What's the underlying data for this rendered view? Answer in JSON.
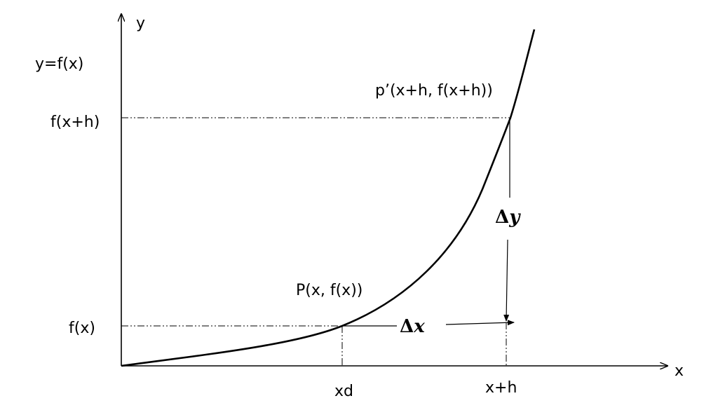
{
  "labels": {
    "y_axis": "y",
    "x_axis": "x",
    "function": "y=f(x)",
    "f_x_plus_h": "f(x+h)",
    "f_x": "f(x)",
    "point_p_prime": "p’(x+h, f(x+h))",
    "point_p": "P(x, f(x))",
    "x_tick_1": "xd",
    "x_tick_2": "x+h",
    "delta_y_symbol": "Δ",
    "delta_y_var": "y",
    "delta_x_symbol": "Δ",
    "delta_x_var": "x"
  },
  "colors": {
    "ink": "#000000",
    "background": "#ffffff"
  }
}
